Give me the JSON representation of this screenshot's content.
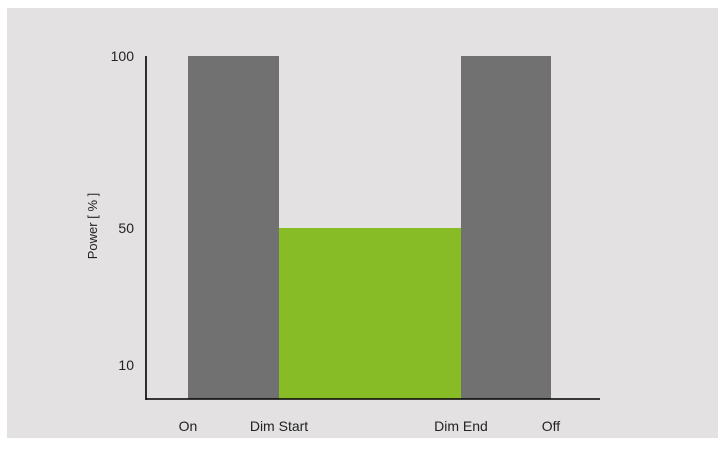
{
  "colors": {
    "background": "#e3e1e1",
    "gray_bar": "#707170",
    "green_bar": "#88bc26",
    "axis": "#000000"
  },
  "chart_data": {
    "type": "bar",
    "title": "",
    "xlabel": "",
    "ylabel": "Power [ % ]",
    "ylim": [
      0,
      100
    ],
    "y_ticks": [
      10,
      50,
      100
    ],
    "x_ticks": [
      {
        "label": "On",
        "x": 0
      },
      {
        "label": "Dim Start",
        "x": 1
      },
      {
        "label": "Dim End",
        "x": 3
      },
      {
        "label": "Off",
        "x": 4
      }
    ],
    "segments": [
      {
        "x_start": 0,
        "x_end": 1,
        "value": 100,
        "color": "gray"
      },
      {
        "x_start": 1,
        "x_end": 3,
        "value": 50,
        "color": "green"
      },
      {
        "x_start": 3,
        "x_end": 4,
        "value": 100,
        "color": "gray"
      }
    ]
  }
}
